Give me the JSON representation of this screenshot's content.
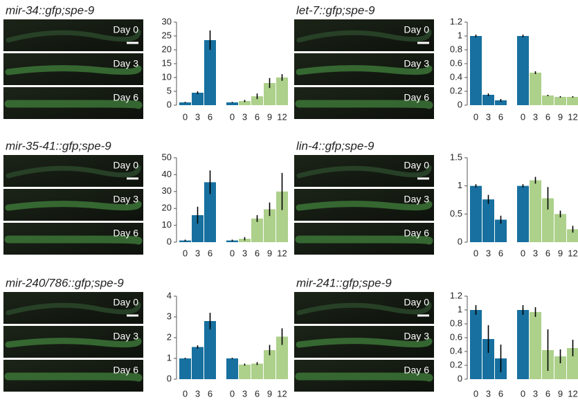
{
  "chart_data": [
    {
      "type": "bar",
      "title": "mir-34::gfp;spe-9",
      "image_labels": [
        "Day 0",
        "Day 3",
        "Day 6"
      ],
      "categories": [
        "0",
        "3",
        "6",
        "0",
        "3",
        "6",
        "9",
        "12"
      ],
      "values": [
        1,
        4.5,
        23.5,
        1,
        1.5,
        3.2,
        8,
        10
      ],
      "errors": [
        0.2,
        0.5,
        3.5,
        0.2,
        0.4,
        1,
        1.8,
        1.2
      ],
      "colors": [
        "#17709f",
        "#17709f",
        "#17709f",
        "#17709f",
        "#add08b",
        "#add08b",
        "#add08b",
        "#add08b"
      ],
      "ylim": [
        0,
        30
      ],
      "yticks": [
        0,
        5,
        10,
        15,
        20,
        25,
        30
      ]
    },
    {
      "type": "bar",
      "title": "let-7::gfp;spe-9",
      "image_labels": [
        "Day 0",
        "Day 3",
        "Day 6"
      ],
      "categories": [
        "0",
        "3",
        "6",
        "0",
        "3",
        "6",
        "9",
        "12"
      ],
      "values": [
        1,
        0.15,
        0.07,
        1,
        0.47,
        0.14,
        0.12,
        0.12
      ],
      "errors": [
        0.02,
        0.02,
        0.02,
        0.02,
        0.02,
        0.01,
        0.01,
        0.01
      ],
      "colors": [
        "#17709f",
        "#17709f",
        "#17709f",
        "#17709f",
        "#add08b",
        "#add08b",
        "#add08b",
        "#add08b"
      ],
      "ylim": [
        0,
        1.2
      ],
      "yticks": [
        0,
        0.2,
        0.4,
        0.6,
        0.8,
        1,
        1.2
      ]
    },
    {
      "type": "bar",
      "title": "mir-35-41::gfp;spe-9",
      "image_labels": [
        "Day 0",
        "Day 3",
        "Day 6"
      ],
      "categories": [
        "0",
        "3",
        "6",
        "0",
        "3",
        "6",
        "9",
        "12"
      ],
      "values": [
        1,
        16,
        35.5,
        1,
        2,
        14,
        19.5,
        30
      ],
      "errors": [
        0.5,
        5,
        7,
        0.5,
        1,
        2,
        4,
        11
      ],
      "colors": [
        "#17709f",
        "#17709f",
        "#17709f",
        "#17709f",
        "#add08b",
        "#add08b",
        "#add08b",
        "#add08b"
      ],
      "ylim": [
        0,
        50
      ],
      "yticks": [
        0,
        10,
        20,
        30,
        40,
        50
      ]
    },
    {
      "type": "bar",
      "title": "lin-4::gfp;spe-9",
      "image_labels": [
        "Day 0",
        "Day 3",
        "Day 6"
      ],
      "categories": [
        "0",
        "3",
        "6",
        "0",
        "3",
        "6",
        "9",
        "12"
      ],
      "values": [
        1,
        0.76,
        0.4,
        1,
        1.1,
        0.78,
        0.5,
        0.23
      ],
      "errors": [
        0.03,
        0.08,
        0.07,
        0.03,
        0.06,
        0.2,
        0.06,
        0.06
      ],
      "colors": [
        "#17709f",
        "#17709f",
        "#17709f",
        "#17709f",
        "#add08b",
        "#add08b",
        "#add08b",
        "#add08b"
      ],
      "ylim": [
        0,
        1.5
      ],
      "yticks": [
        0,
        0.5,
        1,
        1.5
      ]
    },
    {
      "type": "bar",
      "title": "mir-240/786::gfp;spe-9",
      "image_labels": [
        "Day 0",
        "Day 3",
        "Day 6"
      ],
      "categories": [
        "0",
        "3",
        "6",
        "0",
        "3",
        "6",
        "9",
        "12"
      ],
      "values": [
        1,
        1.55,
        2.8,
        1,
        0.7,
        0.75,
        1.4,
        2.05
      ],
      "errors": [
        0.03,
        0.08,
        0.4,
        0.03,
        0.05,
        0.07,
        0.25,
        0.4
      ],
      "colors": [
        "#17709f",
        "#17709f",
        "#17709f",
        "#17709f",
        "#add08b",
        "#add08b",
        "#add08b",
        "#add08b"
      ],
      "ylim": [
        0,
        4
      ],
      "yticks": [
        0,
        1,
        2,
        3,
        4
      ]
    },
    {
      "type": "bar",
      "title": "mir-241::gfp;spe-9",
      "image_labels": [
        "Day 0",
        "Day 3",
        "Day 6"
      ],
      "categories": [
        "0",
        "3",
        "6",
        "0",
        "3",
        "6",
        "9",
        "12"
      ],
      "values": [
        1,
        0.58,
        0.3,
        1,
        0.97,
        0.42,
        0.33,
        0.45
      ],
      "errors": [
        0.07,
        0.2,
        0.2,
        0.07,
        0.07,
        0.3,
        0.1,
        0.12
      ],
      "colors": [
        "#17709f",
        "#17709f",
        "#17709f",
        "#17709f",
        "#add08b",
        "#add08b",
        "#add08b",
        "#add08b"
      ],
      "ylim": [
        0,
        1.2
      ],
      "yticks": [
        0,
        0.2,
        0.4,
        0.6,
        0.8,
        1,
        1.2
      ]
    }
  ]
}
